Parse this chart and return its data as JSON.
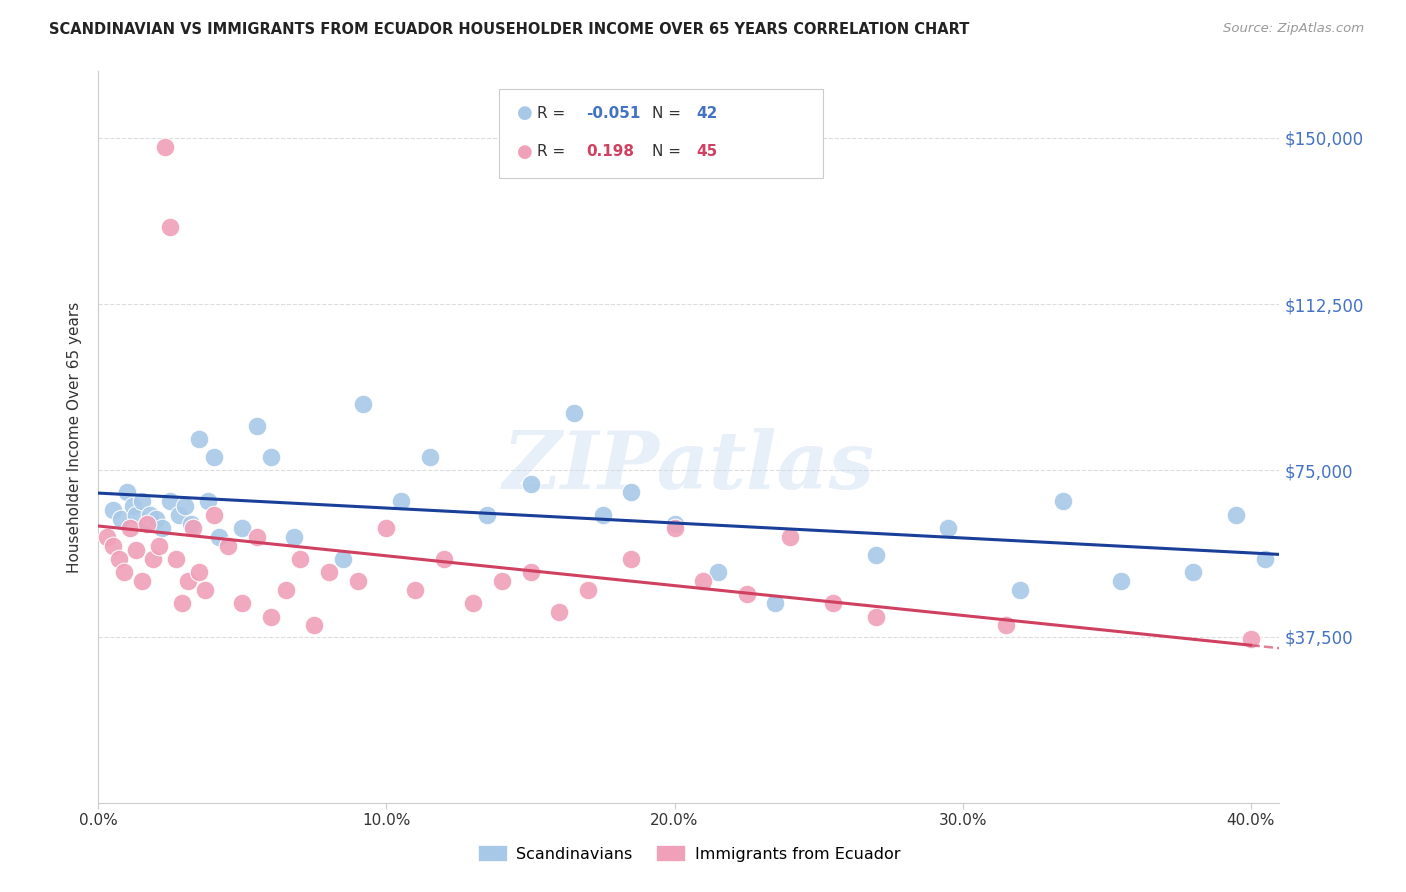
{
  "title": "SCANDINAVIAN VS IMMIGRANTS FROM ECUADOR HOUSEHOLDER INCOME OVER 65 YEARS CORRELATION CHART",
  "source": "Source: ZipAtlas.com",
  "ylabel": "Householder Income Over 65 years",
  "ylim": [
    0,
    165000
  ],
  "xlim": [
    0,
    41
  ],
  "yticks": [
    0,
    37500,
    75000,
    112500,
    150000
  ],
  "ytick_labels": [
    "",
    "$37,500",
    "$75,000",
    "$112,500",
    "$150,000"
  ],
  "xtick_vals": [
    0,
    10,
    20,
    30,
    40
  ],
  "xtick_labels": [
    "0.0%",
    "10.0%",
    "20.0%",
    "30.0%",
    "40.0%"
  ],
  "watermark": "ZIPatlas",
  "blue_color": "#a8c8e8",
  "blue_line_color": "#1a3f99",
  "pink_color": "#f0a0b8",
  "pink_line_color": "#d04060",
  "blue_R": "-0.051",
  "blue_N": "42",
  "pink_R": "0.198",
  "pink_N": "45",
  "scandinavians_x": [
    0.5,
    0.8,
    1.0,
    1.2,
    1.3,
    1.5,
    1.7,
    1.8,
    2.0,
    2.2,
    2.5,
    2.8,
    3.0,
    3.2,
    3.5,
    3.8,
    4.0,
    4.2,
    5.0,
    5.5,
    6.0,
    6.8,
    8.5,
    9.2,
    10.5,
    11.5,
    13.5,
    15.0,
    16.5,
    17.5,
    18.5,
    20.0,
    21.5,
    23.5,
    27.0,
    29.5,
    32.0,
    33.5,
    35.5,
    38.0,
    39.5,
    40.5
  ],
  "scandinavians_y": [
    66000,
    64000,
    70000,
    67000,
    65000,
    68000,
    63000,
    65000,
    64000,
    62000,
    68000,
    65000,
    67000,
    63000,
    82000,
    68000,
    78000,
    60000,
    62000,
    85000,
    78000,
    60000,
    55000,
    90000,
    68000,
    78000,
    65000,
    72000,
    88000,
    65000,
    70000,
    63000,
    52000,
    45000,
    56000,
    62000,
    48000,
    68000,
    50000,
    52000,
    65000,
    55000
  ],
  "ecuador_x": [
    0.3,
    0.5,
    0.7,
    0.9,
    1.1,
    1.3,
    1.5,
    1.7,
    1.9,
    2.1,
    2.3,
    2.5,
    2.7,
    2.9,
    3.1,
    3.3,
    3.5,
    3.7,
    4.0,
    4.5,
    5.0,
    5.5,
    6.0,
    6.5,
    7.0,
    7.5,
    8.0,
    9.0,
    10.0,
    11.0,
    12.0,
    13.0,
    14.0,
    15.0,
    16.0,
    17.0,
    18.5,
    20.0,
    21.0,
    22.5,
    24.0,
    25.5,
    27.0,
    31.5,
    40.0
  ],
  "ecuador_y": [
    60000,
    58000,
    55000,
    52000,
    62000,
    57000,
    50000,
    63000,
    55000,
    58000,
    148000,
    130000,
    55000,
    45000,
    50000,
    62000,
    52000,
    48000,
    65000,
    58000,
    45000,
    60000,
    42000,
    48000,
    55000,
    40000,
    52000,
    50000,
    62000,
    48000,
    55000,
    45000,
    50000,
    52000,
    43000,
    48000,
    55000,
    62000,
    50000,
    47000,
    60000,
    45000,
    42000,
    40000,
    37000
  ]
}
